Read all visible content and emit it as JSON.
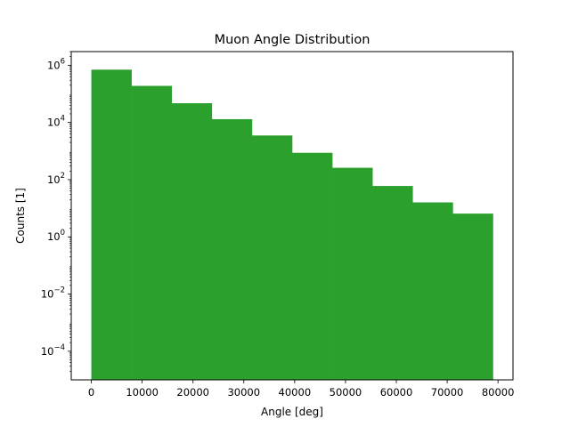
{
  "chart_data": {
    "type": "bar",
    "title": "Muon Angle Distribution",
    "xlabel": "Angle [deg]",
    "ylabel": "Counts [1]",
    "yscale": "log",
    "xlim": [
      -3950,
      82950
    ],
    "ylim": [
      1e-05,
      3000000.0
    ],
    "grid": false,
    "color": "#2ca02c",
    "bins": [
      {
        "x0": 0,
        "x1": 7900,
        "count": 700000
      },
      {
        "x0": 7900,
        "x1": 15800,
        "count": 190000
      },
      {
        "x0": 15800,
        "x1": 23700,
        "count": 47000
      },
      {
        "x0": 23700,
        "x1": 31600,
        "count": 13000
      },
      {
        "x0": 31600,
        "x1": 39500,
        "count": 3500
      },
      {
        "x0": 39500,
        "x1": 47400,
        "count": 870
      },
      {
        "x0": 47400,
        "x1": 55300,
        "count": 260
      },
      {
        "x0": 55300,
        "x1": 63200,
        "count": 60
      },
      {
        "x0": 63200,
        "x1": 71100,
        "count": 16
      },
      {
        "x0": 71100,
        "x1": 79000,
        "count": 6.5
      }
    ],
    "x_ticks": [
      {
        "value": 0,
        "label": "0"
      },
      {
        "value": 10000,
        "label": "10000"
      },
      {
        "value": 20000,
        "label": "20000"
      },
      {
        "value": 30000,
        "label": "30000"
      },
      {
        "value": 40000,
        "label": "40000"
      },
      {
        "value": 50000,
        "label": "50000"
      },
      {
        "value": 60000,
        "label": "60000"
      },
      {
        "value": 70000,
        "label": "70000"
      },
      {
        "value": 80000,
        "label": "80000"
      }
    ],
    "y_ticks": [
      {
        "value": 0.0001,
        "base": "10",
        "exp": "−4"
      },
      {
        "value": 0.01,
        "base": "10",
        "exp": "−2"
      },
      {
        "value": 1,
        "base": "10",
        "exp": "0"
      },
      {
        "value": 100,
        "base": "10",
        "exp": "2"
      },
      {
        "value": 10000,
        "base": "10",
        "exp": "4"
      },
      {
        "value": 1000000,
        "base": "10",
        "exp": "6"
      }
    ]
  }
}
